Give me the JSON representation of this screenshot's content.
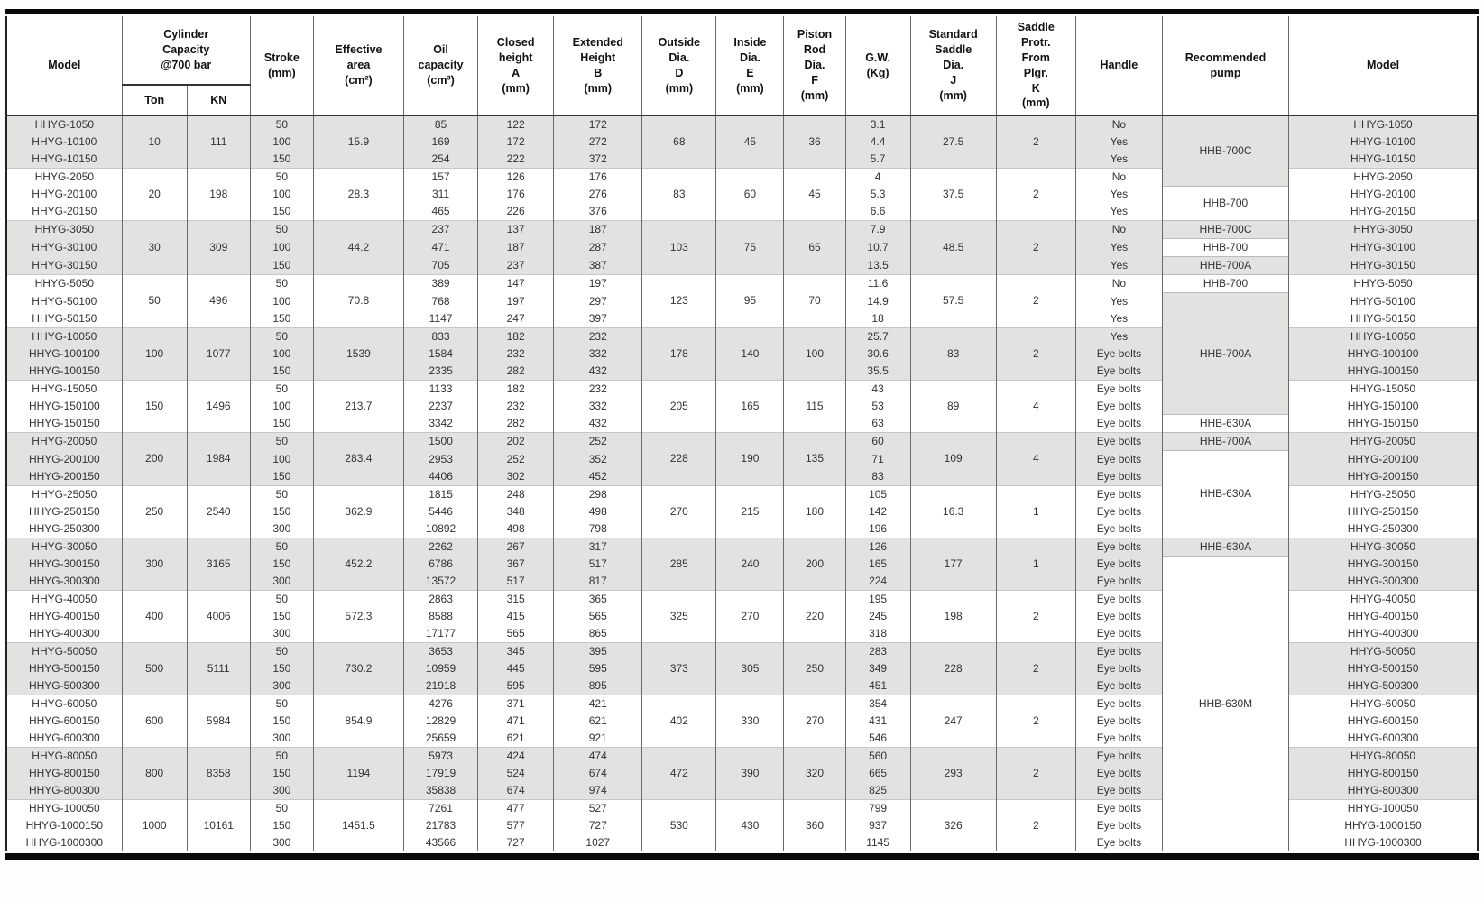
{
  "table": {
    "header": {
      "model_left": "Model",
      "cylinder_capacity": "Cylinder\nCapacity\n@700 bar",
      "ton": "Ton",
      "kn": "KN",
      "stroke": "Stroke\n(mm)",
      "effective_area": "Effective\narea\n(cm²)",
      "oil_capacity": "Oil\ncapacity\n(cm³)",
      "closed_height": "Closed\nheight\nA\n(mm)",
      "extended_height": "Extended\nHeight\nB\n(mm)",
      "outside_dia": "Outside\nDia.\nD\n(mm)",
      "inside_dia": "Inside\nDia.\nE\n(mm)",
      "piston_rod_dia": "Piston\nRod\nDia.\nF\n(mm)",
      "gw": "G.W.\n(Kg)",
      "saddle_dia": "Standard\nSaddle\nDia.\nJ\n(mm)",
      "saddle_protr": "Saddle\nProtr.\nFrom\nPlgr.\nK\n(mm)",
      "handle": "Handle",
      "recommended_pump": "Recommended\npump",
      "model_right": "Model"
    },
    "groups": [
      {
        "shaded": true,
        "ton": "10",
        "kn": "111",
        "effective_area": "15.9",
        "outside_dia": "68",
        "inside_dia": "45",
        "piston_rod_dia": "36",
        "saddle_dia": "27.5",
        "saddle_protr": "2",
        "rows": [
          {
            "model": "HHYG-1050",
            "stroke": "50",
            "oil": "85",
            "closed": "122",
            "extended": "172",
            "gw": "3.1",
            "handle": "No"
          },
          {
            "model": "HHYG-10100",
            "stroke": "100",
            "oil": "169",
            "closed": "172",
            "extended": "272",
            "gw": "4.4",
            "handle": "Yes"
          },
          {
            "model": "HHYG-10150",
            "stroke": "150",
            "oil": "254",
            "closed": "222",
            "extended": "372",
            "gw": "5.7",
            "handle": "Yes"
          }
        ]
      },
      {
        "shaded": false,
        "ton": "20",
        "kn": "198",
        "effective_area": "28.3",
        "outside_dia": "83",
        "inside_dia": "60",
        "piston_rod_dia": "45",
        "saddle_dia": "37.5",
        "saddle_protr": "2",
        "rows": [
          {
            "model": "HHYG-2050",
            "stroke": "50",
            "oil": "157",
            "closed": "126",
            "extended": "176",
            "gw": "4",
            "handle": "No"
          },
          {
            "model": "HHYG-20100",
            "stroke": "100",
            "oil": "311",
            "closed": "176",
            "extended": "276",
            "gw": "5.3",
            "handle": "Yes"
          },
          {
            "model": "HHYG-20150",
            "stroke": "150",
            "oil": "465",
            "closed": "226",
            "extended": "376",
            "gw": "6.6",
            "handle": "Yes"
          }
        ]
      },
      {
        "shaded": true,
        "ton": "30",
        "kn": "309",
        "effective_area": "44.2",
        "outside_dia": "103",
        "inside_dia": "75",
        "piston_rod_dia": "65",
        "saddle_dia": "48.5",
        "saddle_protr": "2",
        "rows": [
          {
            "model": "HHYG-3050",
            "stroke": "50",
            "oil": "237",
            "closed": "137",
            "extended": "187",
            "gw": "7.9",
            "handle": "No"
          },
          {
            "model": "HHYG-30100",
            "stroke": "100",
            "oil": "471",
            "closed": "187",
            "extended": "287",
            "gw": "10.7",
            "handle": "Yes"
          },
          {
            "model": "HHYG-30150",
            "stroke": "150",
            "oil": "705",
            "closed": "237",
            "extended": "387",
            "gw": "13.5",
            "handle": "Yes"
          }
        ]
      },
      {
        "shaded": false,
        "ton": "50",
        "kn": "496",
        "effective_area": "70.8",
        "outside_dia": "123",
        "inside_dia": "95",
        "piston_rod_dia": "70",
        "saddle_dia": "57.5",
        "saddle_protr": "2",
        "rows": [
          {
            "model": "HHYG-5050",
            "stroke": "50",
            "oil": "389",
            "closed": "147",
            "extended": "197",
            "gw": "11.6",
            "handle": "No"
          },
          {
            "model": "HHYG-50100",
            "stroke": "100",
            "oil": "768",
            "closed": "197",
            "extended": "297",
            "gw": "14.9",
            "handle": "Yes"
          },
          {
            "model": "HHYG-50150",
            "stroke": "150",
            "oil": "1147",
            "closed": "247",
            "extended": "397",
            "gw": "18",
            "handle": "Yes"
          }
        ]
      },
      {
        "shaded": true,
        "ton": "100",
        "kn": "1077",
        "effective_area": "1539",
        "outside_dia": "178",
        "inside_dia": "140",
        "piston_rod_dia": "100",
        "saddle_dia": "83",
        "saddle_protr": "2",
        "rows": [
          {
            "model": "HHYG-10050",
            "stroke": "50",
            "oil": "833",
            "closed": "182",
            "extended": "232",
            "gw": "25.7",
            "handle": "Yes"
          },
          {
            "model": "HHYG-100100",
            "stroke": "100",
            "oil": "1584",
            "closed": "232",
            "extended": "332",
            "gw": "30.6",
            "handle": "Eye bolts"
          },
          {
            "model": "HHYG-100150",
            "stroke": "150",
            "oil": "2335",
            "closed": "282",
            "extended": "432",
            "gw": "35.5",
            "handle": "Eye bolts"
          }
        ]
      },
      {
        "shaded": false,
        "ton": "150",
        "kn": "1496",
        "effective_area": "213.7",
        "outside_dia": "205",
        "inside_dia": "165",
        "piston_rod_dia": "115",
        "saddle_dia": "89",
        "saddle_protr": "4",
        "rows": [
          {
            "model": "HHYG-15050",
            "stroke": "50",
            "oil": "1133",
            "closed": "182",
            "extended": "232",
            "gw": "43",
            "handle": "Eye bolts"
          },
          {
            "model": "HHYG-150100",
            "stroke": "100",
            "oil": "2237",
            "closed": "232",
            "extended": "332",
            "gw": "53",
            "handle": "Eye bolts"
          },
          {
            "model": "HHYG-150150",
            "stroke": "150",
            "oil": "3342",
            "closed": "282",
            "extended": "432",
            "gw": "63",
            "handle": "Eye bolts"
          }
        ]
      },
      {
        "shaded": true,
        "ton": "200",
        "kn": "1984",
        "effective_area": "283.4",
        "outside_dia": "228",
        "inside_dia": "190",
        "piston_rod_dia": "135",
        "saddle_dia": "109",
        "saddle_protr": "4",
        "rows": [
          {
            "model": "HHYG-20050",
            "stroke": "50",
            "oil": "1500",
            "closed": "202",
            "extended": "252",
            "gw": "60",
            "handle": "Eye bolts"
          },
          {
            "model": "HHYG-200100",
            "stroke": "100",
            "oil": "2953",
            "closed": "252",
            "extended": "352",
            "gw": "71",
            "handle": "Eye bolts"
          },
          {
            "model": "HHYG-200150",
            "stroke": "150",
            "oil": "4406",
            "closed": "302",
            "extended": "452",
            "gw": "83",
            "handle": "Eye bolts"
          }
        ]
      },
      {
        "shaded": false,
        "ton": "250",
        "kn": "2540",
        "effective_area": "362.9",
        "outside_dia": "270",
        "inside_dia": "215",
        "piston_rod_dia": "180",
        "saddle_dia": "16.3",
        "saddle_protr": "1",
        "rows": [
          {
            "model": "HHYG-25050",
            "stroke": "50",
            "oil": "1815",
            "closed": "248",
            "extended": "298",
            "gw": "105",
            "handle": "Eye bolts"
          },
          {
            "model": "HHYG-250150",
            "stroke": "150",
            "oil": "5446",
            "closed": "348",
            "extended": "498",
            "gw": "142",
            "handle": "Eye bolts"
          },
          {
            "model": "HHYG-250300",
            "stroke": "300",
            "oil": "10892",
            "closed": "498",
            "extended": "798",
            "gw": "196",
            "handle": "Eye bolts"
          }
        ]
      },
      {
        "shaded": true,
        "ton": "300",
        "kn": "3165",
        "effective_area": "452.2",
        "outside_dia": "285",
        "inside_dia": "240",
        "piston_rod_dia": "200",
        "saddle_dia": "177",
        "saddle_protr": "1",
        "rows": [
          {
            "model": "HHYG-30050",
            "stroke": "50",
            "oil": "2262",
            "closed": "267",
            "extended": "317",
            "gw": "126",
            "handle": "Eye bolts"
          },
          {
            "model": "HHYG-300150",
            "stroke": "150",
            "oil": "6786",
            "closed": "367",
            "extended": "517",
            "gw": "165",
            "handle": "Eye bolts"
          },
          {
            "model": "HHYG-300300",
            "stroke": "300",
            "oil": "13572",
            "closed": "517",
            "extended": "817",
            "gw": "224",
            "handle": "Eye bolts"
          }
        ]
      },
      {
        "shaded": false,
        "ton": "400",
        "kn": "4006",
        "effective_area": "572.3",
        "outside_dia": "325",
        "inside_dia": "270",
        "piston_rod_dia": "220",
        "saddle_dia": "198",
        "saddle_protr": "2",
        "rows": [
          {
            "model": "HHYG-40050",
            "stroke": "50",
            "oil": "2863",
            "closed": "315",
            "extended": "365",
            "gw": "195",
            "handle": "Eye bolts"
          },
          {
            "model": "HHYG-400150",
            "stroke": "150",
            "oil": "8588",
            "closed": "415",
            "extended": "565",
            "gw": "245",
            "handle": "Eye bolts"
          },
          {
            "model": "HHYG-400300",
            "stroke": "300",
            "oil": "17177",
            "closed": "565",
            "extended": "865",
            "gw": "318",
            "handle": "Eye bolts"
          }
        ]
      },
      {
        "shaded": true,
        "ton": "500",
        "kn": "5111",
        "effective_area": "730.2",
        "outside_dia": "373",
        "inside_dia": "305",
        "piston_rod_dia": "250",
        "saddle_dia": "228",
        "saddle_protr": "2",
        "rows": [
          {
            "model": "HHYG-50050",
            "stroke": "50",
            "oil": "3653",
            "closed": "345",
            "extended": "395",
            "gw": "283",
            "handle": "Eye bolts"
          },
          {
            "model": "HHYG-500150",
            "stroke": "150",
            "oil": "10959",
            "closed": "445",
            "extended": "595",
            "gw": "349",
            "handle": "Eye bolts"
          },
          {
            "model": "HHYG-500300",
            "stroke": "300",
            "oil": "21918",
            "closed": "595",
            "extended": "895",
            "gw": "451",
            "handle": "Eye bolts"
          }
        ]
      },
      {
        "shaded": false,
        "ton": "600",
        "kn": "5984",
        "effective_area": "854.9",
        "outside_dia": "402",
        "inside_dia": "330",
        "piston_rod_dia": "270",
        "saddle_dia": "247",
        "saddle_protr": "2",
        "rows": [
          {
            "model": "HHYG-60050",
            "stroke": "50",
            "oil": "4276",
            "closed": "371",
            "extended": "421",
            "gw": "354",
            "handle": "Eye bolts"
          },
          {
            "model": "HHYG-600150",
            "stroke": "150",
            "oil": "12829",
            "closed": "471",
            "extended": "621",
            "gw": "431",
            "handle": "Eye bolts"
          },
          {
            "model": "HHYG-600300",
            "stroke": "300",
            "oil": "25659",
            "closed": "621",
            "extended": "921",
            "gw": "546",
            "handle": "Eye bolts"
          }
        ]
      },
      {
        "shaded": true,
        "ton": "800",
        "kn": "8358",
        "effective_area": "1194",
        "outside_dia": "472",
        "inside_dia": "390",
        "piston_rod_dia": "320",
        "saddle_dia": "293",
        "saddle_protr": "2",
        "rows": [
          {
            "model": "HHYG-80050",
            "stroke": "50",
            "oil": "5973",
            "closed": "424",
            "extended": "474",
            "gw": "560",
            "handle": "Eye bolts"
          },
          {
            "model": "HHYG-800150",
            "stroke": "150",
            "oil": "17919",
            "closed": "524",
            "extended": "674",
            "gw": "665",
            "handle": "Eye bolts"
          },
          {
            "model": "HHYG-800300",
            "stroke": "300",
            "oil": "35838",
            "closed": "674",
            "extended": "974",
            "gw": "825",
            "handle": "Eye bolts"
          }
        ]
      },
      {
        "shaded": false,
        "ton": "1000",
        "kn": "10161",
        "effective_area": "1451.5",
        "outside_dia": "530",
        "inside_dia": "430",
        "piston_rod_dia": "360",
        "saddle_dia": "326",
        "saddle_protr": "2",
        "rows": [
          {
            "model": "HHYG-100050",
            "stroke": "50",
            "oil": "7261",
            "closed": "477",
            "extended": "527",
            "gw": "799",
            "handle": "Eye bolts"
          },
          {
            "model": "HHYG-1000150",
            "stroke": "150",
            "oil": "21783",
            "closed": "577",
            "extended": "727",
            "gw": "937",
            "handle": "Eye bolts"
          },
          {
            "model": "HHYG-1000300",
            "stroke": "300",
            "oil": "43566",
            "closed": "727",
            "extended": "1027",
            "gw": "1145",
            "handle": "Eye bolts"
          }
        ]
      }
    ],
    "pump_spans": [
      {
        "label": "HHB-700C",
        "rows": 4,
        "shaded": true
      },
      {
        "label": "HHB-700",
        "rows": 2,
        "shaded": false
      },
      {
        "label": "HHB-700C",
        "rows": 1,
        "shaded": true
      },
      {
        "label": "HHB-700",
        "rows": 1,
        "shaded": false
      },
      {
        "label": "HHB-700A",
        "rows": 1,
        "shaded": true
      },
      {
        "label": "HHB-700",
        "rows": 1,
        "shaded": false
      },
      {
        "label": "HHB-700A",
        "rows": 7,
        "shaded": true
      },
      {
        "label": "HHB-630A",
        "rows": 1,
        "shaded": false
      },
      {
        "label": "HHB-700A",
        "rows": 1,
        "shaded": true
      },
      {
        "label": "HHB-630A",
        "rows": 5,
        "shaded": false
      },
      {
        "label": "HHB-630A",
        "rows": 1,
        "shaded": true
      },
      {
        "label": "HHB-630M",
        "rows": 17,
        "shaded": false
      }
    ]
  }
}
